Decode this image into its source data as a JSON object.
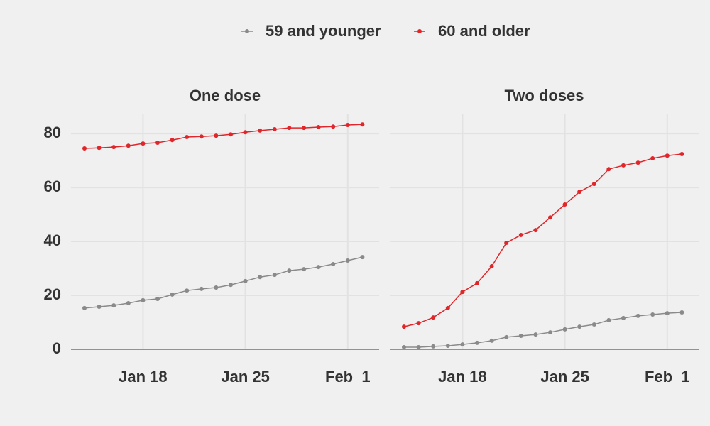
{
  "chart_data": [
    {
      "type": "line",
      "title": "One dose",
      "categories": [
        null,
        null,
        null,
        null,
        "Jan 18",
        null,
        null,
        null,
        null,
        null,
        null,
        "Jan 25",
        null,
        null,
        null,
        null,
        null,
        null,
        "Feb  1",
        null
      ],
      "ylim": [
        0,
        87.4
      ],
      "yticks": [
        0,
        20,
        40,
        60,
        80
      ],
      "grid": true,
      "series": [
        {
          "name": "59 and younger",
          "color": "#8a8a8a",
          "values": [
            15.3,
            15.8,
            16.3,
            17.1,
            18.2,
            18.7,
            20.3,
            21.8,
            22.4,
            22.9,
            23.9,
            25.3,
            26.8,
            27.6,
            29.2,
            29.7,
            30.5,
            31.6,
            32.9,
            34.2
          ]
        },
        {
          "name": "60 and older",
          "color": "#e0262a",
          "values": [
            74.5,
            74.7,
            75.0,
            75.5,
            76.3,
            76.6,
            77.6,
            78.7,
            78.9,
            79.2,
            79.7,
            80.5,
            81.1,
            81.6,
            82.1,
            82.1,
            82.4,
            82.6,
            83.2,
            83.4
          ]
        }
      ]
    },
    {
      "type": "line",
      "title": "Two doses",
      "categories": [
        null,
        null,
        null,
        null,
        "Jan 18",
        null,
        null,
        null,
        null,
        null,
        null,
        "Jan 25",
        null,
        null,
        null,
        null,
        null,
        null,
        "Feb  1",
        null
      ],
      "ylim": [
        0,
        87.4
      ],
      "yticks": [
        0,
        20,
        40,
        60,
        80
      ],
      "grid": true,
      "series": [
        {
          "name": "59 and younger",
          "color": "#8a8a8a",
          "values": [
            0.8,
            0.8,
            1.1,
            1.3,
            1.8,
            2.4,
            3.2,
            4.5,
            5.0,
            5.5,
            6.3,
            7.4,
            8.4,
            9.2,
            10.8,
            11.6,
            12.4,
            12.9,
            13.4,
            13.7
          ]
        },
        {
          "name": "60 and older",
          "color": "#e0262a",
          "values": [
            8.4,
            9.7,
            11.8,
            15.3,
            21.3,
            24.5,
            30.8,
            39.5,
            42.4,
            44.2,
            48.9,
            53.7,
            58.4,
            61.3,
            66.8,
            68.2,
            69.2,
            70.8,
            71.8,
            72.4
          ]
        }
      ]
    }
  ]
}
